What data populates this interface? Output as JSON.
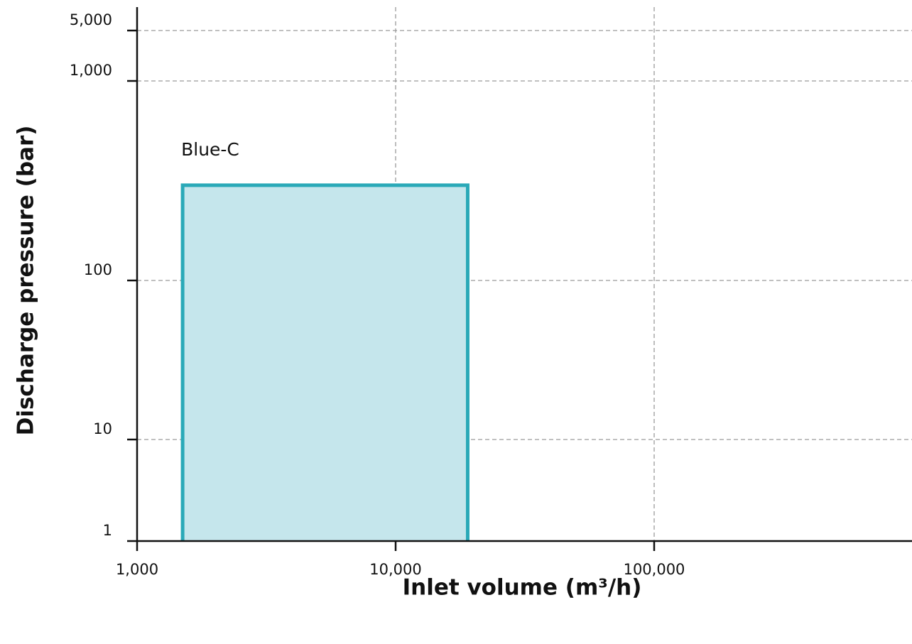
{
  "chart_data": {
    "type": "area",
    "xlabel": "Inlet volume (m³/h)",
    "ylabel": "Discharge pressure (bar)",
    "x_scale": "log",
    "y_scale": "custom",
    "x_ticks": [
      {
        "value": 1000,
        "label": "1,000"
      },
      {
        "value": 10000,
        "label": "10,000"
      },
      {
        "value": 100000,
        "label": "100,000"
      }
    ],
    "y_ticks": [
      {
        "value": 1,
        "label": "1"
      },
      {
        "value": 10,
        "label": "10"
      },
      {
        "value": 100,
        "label": "100"
      },
      {
        "value": 1000,
        "label": "1,000"
      },
      {
        "value": 5000,
        "label": "5,000"
      }
    ],
    "grid": true,
    "regions": [
      {
        "name": "Blue-C",
        "x_range": [
          1500,
          19000
        ],
        "y_range": [
          1,
          300
        ],
        "stroke": "#2aa9b8",
        "fill": "#c5e6ec"
      }
    ]
  }
}
